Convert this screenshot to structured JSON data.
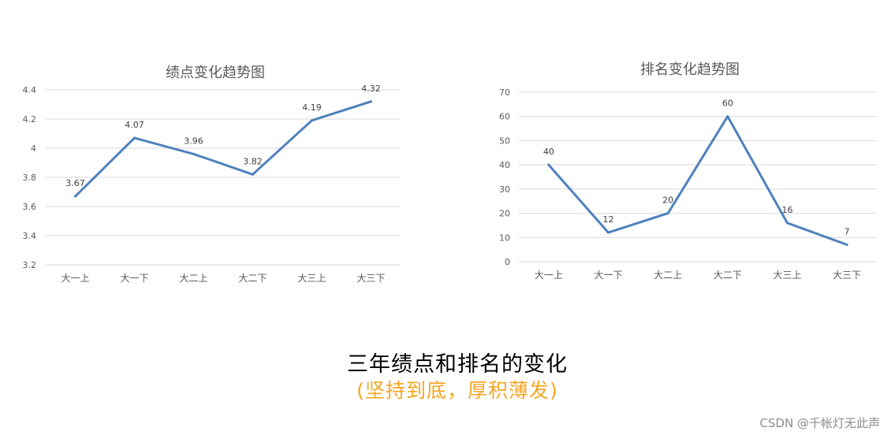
{
  "chart_data": [
    {
      "type": "line",
      "title": "绩点变化趋势图",
      "categories": [
        "大一上",
        "大一下",
        "大二上",
        "大二下",
        "大三上",
        "大三下"
      ],
      "series": [
        {
          "values": [
            3.67,
            4.07,
            3.96,
            3.82,
            4.19,
            4.32
          ],
          "color": "#4f81bd"
        }
      ],
      "data_labels": [
        "3.67",
        "4.07",
        "3.96",
        "3.82",
        "4.19",
        "4.32"
      ],
      "ylim": [
        3.2,
        4.4
      ],
      "yticks": [
        3.2,
        3.4,
        3.6,
        3.8,
        4.0,
        4.2,
        4.4
      ],
      "ytick_labels": [
        "3.2",
        "3.4",
        "3.6",
        "3.8",
        "4",
        "4.2",
        "4.4"
      ],
      "xlabel": "",
      "ylabel": "",
      "grid": true
    },
    {
      "type": "line",
      "title": "排名变化趋势图",
      "categories": [
        "大一上",
        "大一下",
        "大二上",
        "大二下",
        "大三上",
        "大三下"
      ],
      "series": [
        {
          "values": [
            40,
            12,
            20,
            60,
            16,
            7
          ],
          "color": "#4f81bd"
        }
      ],
      "data_labels": [
        "40",
        "12",
        "20",
        "60",
        "16",
        "7"
      ],
      "ylim": [
        0,
        70
      ],
      "yticks": [
        0,
        10,
        20,
        30,
        40,
        50,
        60,
        70
      ],
      "ytick_labels": [
        "0",
        "10",
        "20",
        "30",
        "40",
        "50",
        "60",
        "70"
      ],
      "xlabel": "",
      "ylabel": "",
      "grid": true
    }
  ],
  "caption": {
    "main": "三年绩点和排名的变化",
    "sub": "(坚持到底，厚积薄发)"
  },
  "watermark": "CSDN @千帐灯无此声"
}
